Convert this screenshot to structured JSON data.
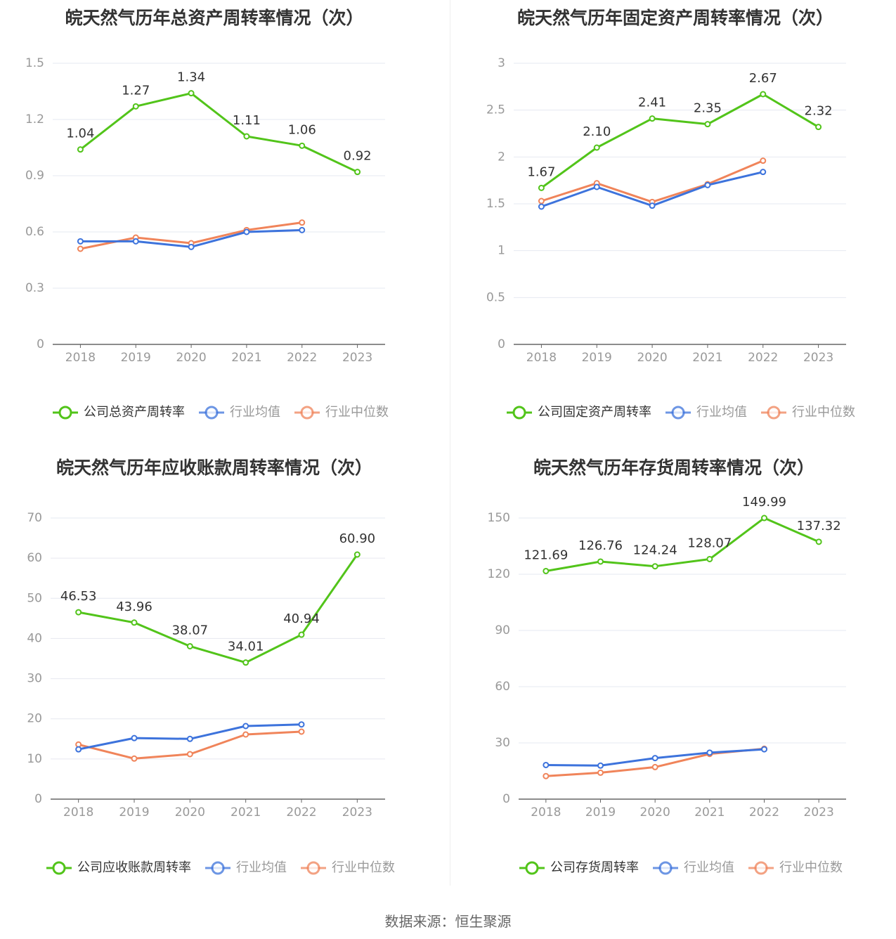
{
  "colors": {
    "company": "#52c41a",
    "avg": "#3d73dc",
    "median": "#f0845a",
    "grid": "#e6e8f0",
    "axis": "#666666",
    "tick": "#999999",
    "title": "#333333"
  },
  "source_label": "数据来源：恒生聚源",
  "chart_data": [
    {
      "type": "line",
      "title": "皖天然气历年总资产周转率情况（次）",
      "categories": [
        "2018",
        "2019",
        "2020",
        "2021",
        "2022",
        "2023"
      ],
      "yticks": [
        "0",
        "0.3",
        "0.6",
        "0.9",
        "1.2",
        "1.5"
      ],
      "ylim": [
        0,
        1.5
      ],
      "series": [
        {
          "name": "公司总资产周转率",
          "values": [
            1.04,
            1.27,
            1.34,
            1.11,
            1.06,
            0.92
          ],
          "labels": [
            "1.04",
            "1.27",
            "1.34",
            "1.11",
            "1.06",
            "0.92"
          ]
        },
        {
          "name": "行业均值",
          "values": [
            0.55,
            0.55,
            0.52,
            0.6,
            0.61,
            null
          ]
        },
        {
          "name": "行业中位数",
          "values": [
            0.51,
            0.57,
            0.54,
            0.61,
            0.65,
            null
          ]
        }
      ]
    },
    {
      "type": "line",
      "title": "皖天然气历年固定资产周转率情况（次）",
      "categories": [
        "2018",
        "2019",
        "2020",
        "2021",
        "2022",
        "2023"
      ],
      "yticks": [
        "0",
        "0.5",
        "1",
        "1.5",
        "2",
        "2.5",
        "3"
      ],
      "ylim": [
        0,
        3
      ],
      "series": [
        {
          "name": "公司固定资产周转率",
          "values": [
            1.67,
            2.1,
            2.41,
            2.35,
            2.67,
            2.32
          ],
          "labels": [
            "1.67",
            "2.10",
            "2.41",
            "2.35",
            "2.67",
            "2.32"
          ]
        },
        {
          "name": "行业均值",
          "values": [
            1.47,
            1.68,
            1.48,
            1.7,
            1.84,
            null
          ]
        },
        {
          "name": "行业中位数",
          "values": [
            1.53,
            1.72,
            1.52,
            1.71,
            1.96,
            null
          ]
        }
      ]
    },
    {
      "type": "line",
      "title": "皖天然气历年应收账款周转率情况（次）",
      "categories": [
        "2018",
        "2019",
        "2020",
        "2021",
        "2022",
        "2023"
      ],
      "yticks": [
        "0",
        "10",
        "20",
        "30",
        "40",
        "50",
        "60",
        "70"
      ],
      "ylim": [
        0,
        70
      ],
      "series": [
        {
          "name": "公司应收账款周转率",
          "values": [
            46.53,
            43.96,
            38.07,
            34.01,
            40.94,
            60.9
          ],
          "labels": [
            "46.53",
            "43.96",
            "38.07",
            "34.01",
            "40.94",
            "60.90"
          ]
        },
        {
          "name": "行业均值",
          "values": [
            12.4,
            15.2,
            15.0,
            18.2,
            18.6,
            null
          ]
        },
        {
          "name": "行业中位数",
          "values": [
            13.6,
            10.1,
            11.2,
            16.1,
            16.8,
            null
          ]
        }
      ]
    },
    {
      "type": "line",
      "title": "皖天然气历年存货周转率情况（次）",
      "categories": [
        "2018",
        "2019",
        "2020",
        "2021",
        "2022",
        "2023"
      ],
      "yticks": [
        "0",
        "30",
        "60",
        "90",
        "120",
        "150"
      ],
      "ylim": [
        0,
        150
      ],
      "series": [
        {
          "name": "公司存货周转率",
          "values": [
            121.69,
            126.76,
            124.24,
            128.07,
            149.99,
            137.32
          ],
          "labels": [
            "121.69",
            "126.76",
            "124.24",
            "128.07",
            "149.99",
            "137.32"
          ]
        },
        {
          "name": "行业均值",
          "values": [
            18.2,
            17.9,
            21.9,
            24.8,
            26.6,
            null
          ]
        },
        {
          "name": "行业中位数",
          "values": [
            12.3,
            14.1,
            17.1,
            24.1,
            26.9,
            null
          ]
        }
      ]
    }
  ]
}
